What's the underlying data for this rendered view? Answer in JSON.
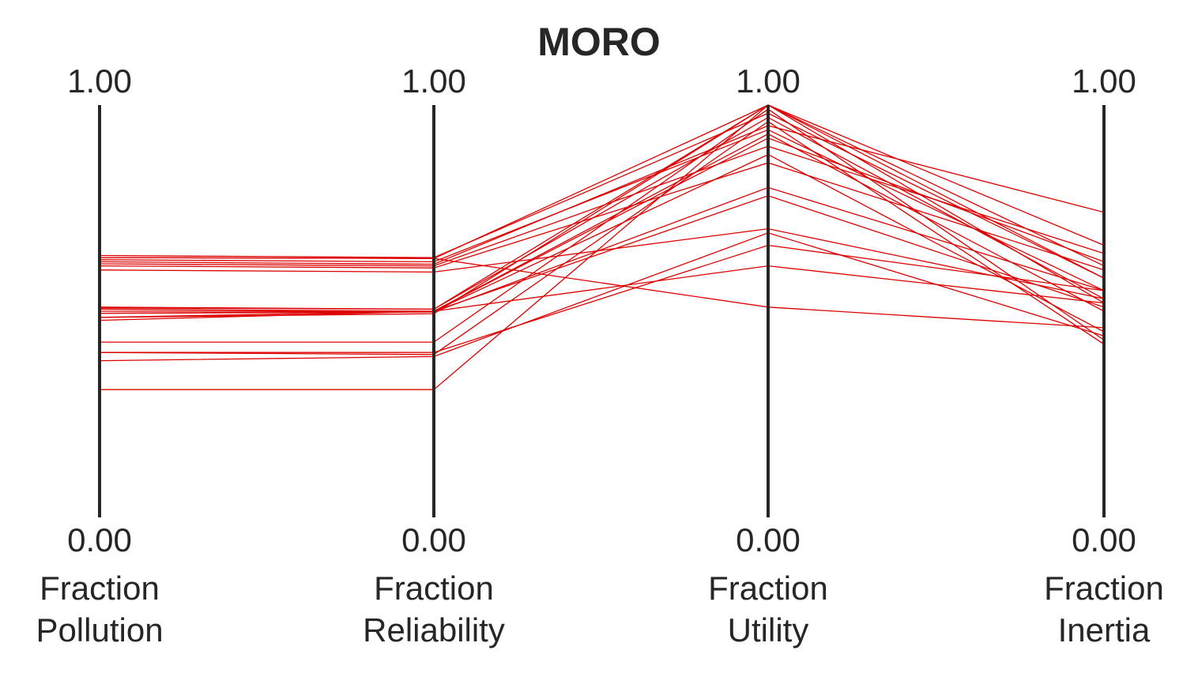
{
  "chart_data": {
    "type": "parallel_coordinates",
    "title": "MORO",
    "axes": [
      {
        "label_lines": [
          "Fraction",
          "Pollution"
        ],
        "max_label": "1.00",
        "min_label": "0.00"
      },
      {
        "label_lines": [
          "Fraction",
          "Reliability"
        ],
        "max_label": "1.00",
        "min_label": "0.00"
      },
      {
        "label_lines": [
          "Fraction",
          "Utility"
        ],
        "max_label": "1.00",
        "min_label": "0.00"
      },
      {
        "label_lines": [
          "Fraction",
          "Inertia"
        ],
        "max_label": "1.00",
        "min_label": "0.00"
      }
    ],
    "ylim": [
      0,
      1
    ],
    "line_color": "#dd0000",
    "series": [
      {
        "values": [
          0.635,
          0.63,
          0.98,
          0.58
        ]
      },
      {
        "values": [
          0.625,
          0.62,
          0.94,
          0.55
        ]
      },
      {
        "values": [
          0.615,
          0.61,
          0.9,
          0.64
        ]
      },
      {
        "values": [
          0.61,
          0.605,
          0.86,
          0.6
        ]
      },
      {
        "values": [
          0.6,
          0.595,
          0.7,
          0.53
        ]
      },
      {
        "values": [
          0.51,
          0.505,
          1.0,
          0.58
        ]
      },
      {
        "values": [
          0.508,
          0.505,
          0.97,
          0.53
        ]
      },
      {
        "values": [
          0.5,
          0.5,
          0.92,
          0.62
        ]
      },
      {
        "values": [
          0.495,
          0.5,
          0.88,
          0.45
        ]
      },
      {
        "values": [
          0.485,
          0.5,
          0.78,
          0.51
        ]
      },
      {
        "values": [
          0.478,
          0.5,
          0.61,
          0.52
        ]
      },
      {
        "values": [
          0.425,
          0.425,
          0.99,
          0.43
        ]
      },
      {
        "values": [
          0.4,
          0.395,
          0.96,
          0.42
        ]
      },
      {
        "values": [
          0.38,
          0.39,
          0.69,
          0.44
        ]
      },
      {
        "values": [
          0.31,
          0.31,
          1.0,
          0.61
        ]
      },
      {
        "values": [
          0.63,
          0.628,
          1.0,
          0.52
        ]
      },
      {
        "values": [
          0.62,
          0.614,
          0.95,
          0.74
        ]
      },
      {
        "values": [
          0.505,
          0.5,
          0.93,
          0.5
        ]
      },
      {
        "values": [
          0.4,
          0.4,
          0.66,
          0.55
        ]
      },
      {
        "values": [
          0.63,
          0.628,
          0.51,
          0.46
        ]
      },
      {
        "values": [
          0.485,
          0.494,
          1.0,
          0.66
        ]
      },
      {
        "values": [
          0.495,
          0.498,
          0.8,
          0.55
        ]
      }
    ]
  }
}
